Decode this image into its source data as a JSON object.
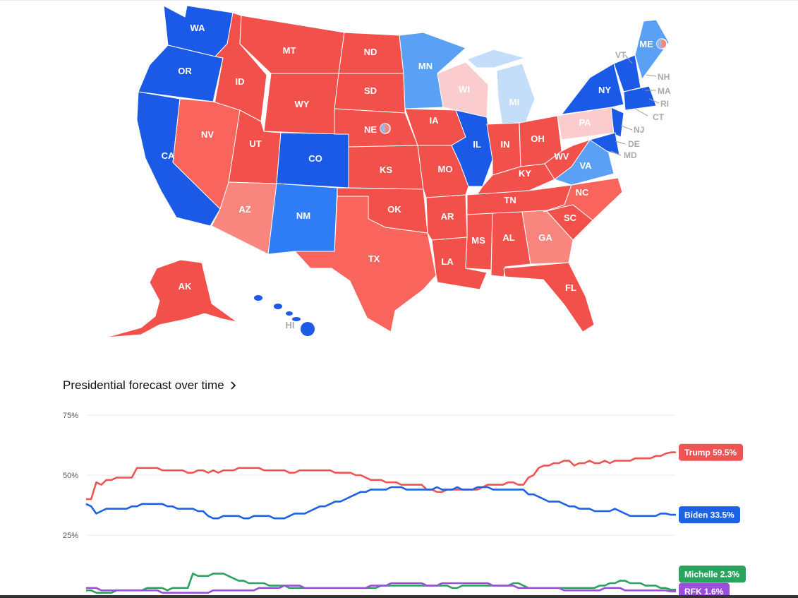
{
  "colors": {
    "safe_dem": "#1a5ae6",
    "likely_dem": "#2e7cf6",
    "lean_dem": "#5aa0f5",
    "tilt_dem": "#c4ddf8",
    "safe_rep": "#f2504b",
    "likely_rep": "#f9655d",
    "lean_rep": "#f9857f",
    "tilt_rep": "#fbcccd",
    "trump": "#ee5453",
    "biden": "#1d62e4",
    "michelle": "#2aa35f",
    "rfk": "#9a4ed9"
  },
  "map": {
    "state_labels": [
      "WA",
      "OR",
      "CA",
      "ID",
      "MT",
      "WY",
      "NV",
      "UT",
      "CO",
      "AZ",
      "NM",
      "ND",
      "SD",
      "NE",
      "KS",
      "OK",
      "TX",
      "MN",
      "IA",
      "MO",
      "AR",
      "LA",
      "WI",
      "IL",
      "MI",
      "IN",
      "OH",
      "KY",
      "TN",
      "MS",
      "AL",
      "GA",
      "FL",
      "SC",
      "NC",
      "VA",
      "WV",
      "PA",
      "NY",
      "ME",
      "AK",
      "HI"
    ],
    "external_labels": [
      "VT",
      "NH",
      "MA",
      "RI",
      "CT",
      "NJ",
      "DE",
      "MD"
    ]
  },
  "forecast": {
    "title": "Presidential forecast over time",
    "chevron_icon": "chevron-right-icon"
  },
  "chart_data": {
    "type": "line",
    "y_ticks": [
      "75%",
      "50%",
      "25%"
    ],
    "ylim": [
      0,
      75
    ],
    "grid": true,
    "legend": "end-of-line tags",
    "series": [
      {
        "name": "Trump",
        "end_label": "Trump 59.5%",
        "values": [
          40,
          40,
          47,
          46,
          48,
          48,
          49,
          49,
          49,
          49,
          53,
          53,
          53,
          53,
          53,
          52,
          52,
          52,
          52,
          52,
          51,
          51,
          52,
          52,
          51,
          52,
          51,
          52,
          52,
          52,
          53,
          53,
          53,
          53,
          53,
          52,
          52,
          52,
          52,
          52,
          51,
          51,
          52,
          52,
          52,
          52,
          52,
          52,
          52,
          51,
          51,
          51,
          51,
          50,
          50,
          49,
          48,
          48,
          48,
          47,
          47,
          47,
          46,
          46,
          46,
          46,
          46,
          44,
          44,
          43,
          43,
          44,
          44,
          44,
          44,
          44,
          44,
          44,
          45,
          46,
          46,
          46,
          46,
          47,
          47,
          46,
          46,
          49,
          50,
          53,
          54,
          54,
          55,
          55,
          56,
          56,
          54,
          55,
          55,
          56,
          55,
          55,
          56,
          55,
          56,
          56,
          56,
          56,
          57,
          57,
          57,
          57,
          58,
          58,
          59,
          59.5,
          59.5
        ]
      },
      {
        "name": "Biden",
        "end_label": "Biden 33.5%",
        "values": [
          38,
          37,
          34,
          35,
          36,
          36,
          36,
          36,
          36,
          37,
          37,
          38,
          38,
          38,
          38,
          38,
          37,
          37,
          36,
          36,
          36,
          36,
          35,
          35,
          33,
          32,
          32,
          33,
          33,
          33,
          33,
          32,
          32,
          33,
          33,
          33,
          33,
          32,
          32,
          32,
          33,
          34,
          34,
          34,
          35,
          36,
          37,
          37,
          38,
          39,
          39,
          40,
          41,
          42,
          43,
          43,
          44,
          44,
          44,
          44,
          45,
          45,
          45,
          44,
          44,
          44,
          44,
          44,
          44,
          45,
          44,
          44,
          44,
          45,
          44,
          44,
          44,
          45,
          45,
          45,
          44,
          44,
          44,
          44,
          44,
          44,
          44,
          42,
          42,
          41,
          40,
          39,
          39,
          39,
          38,
          37,
          37,
          36,
          36,
          36,
          35,
          35,
          35,
          35,
          36,
          35,
          34,
          33,
          33,
          33,
          33,
          33,
          33,
          34,
          34,
          33.5,
          33.5
        ]
      },
      {
        "name": "Michelle",
        "end_label": "Michelle 2.3%",
        "values": [
          2,
          2,
          1,
          1,
          1,
          1,
          2,
          2,
          2,
          2,
          2,
          2,
          3,
          3,
          3,
          3,
          2,
          3,
          3,
          3,
          3,
          9,
          8,
          8,
          8,
          9,
          9,
          9,
          8,
          7,
          6,
          6,
          5,
          5,
          5,
          5,
          4,
          4,
          4,
          4,
          3,
          3,
          3,
          3,
          3,
          3,
          3,
          3,
          3,
          3,
          3,
          3,
          3,
          3,
          3,
          3,
          3,
          3,
          4,
          4,
          4,
          4,
          4,
          4,
          4,
          4,
          4,
          4,
          4,
          4,
          4,
          4,
          3,
          3,
          4,
          4,
          4,
          4,
          4,
          4,
          4,
          4,
          4,
          4,
          5,
          5,
          4,
          3,
          3,
          3,
          3,
          3,
          3,
          3,
          3,
          3,
          3,
          3,
          3,
          3,
          3,
          4,
          4,
          5,
          5,
          6,
          6,
          5,
          5,
          5,
          4,
          4,
          4,
          3,
          3,
          2.3,
          2.3
        ]
      },
      {
        "name": "RFK",
        "end_label": "RFK 1.6%",
        "values": [
          3,
          3,
          3,
          2,
          2,
          2,
          2,
          2,
          2,
          2,
          2,
          2,
          2,
          2,
          2,
          1,
          1,
          1,
          1,
          1,
          1,
          1,
          1,
          1,
          1,
          2,
          2,
          2,
          2,
          2,
          2,
          2,
          2,
          2,
          3,
          3,
          3,
          3,
          3,
          4,
          4,
          4,
          4,
          3,
          3,
          3,
          3,
          3,
          3,
          3,
          3,
          3,
          3,
          3,
          3,
          3,
          4,
          4,
          4,
          4,
          5,
          5,
          5,
          5,
          5,
          5,
          5,
          4,
          4,
          4,
          5,
          5,
          5,
          5,
          5,
          5,
          5,
          5,
          5,
          5,
          4,
          4,
          4,
          4,
          4,
          3,
          3,
          3,
          3,
          3,
          3,
          3,
          3,
          3,
          2,
          2,
          2,
          2,
          2,
          2,
          2,
          2,
          3,
          3,
          3,
          3,
          2,
          2,
          2,
          2,
          2,
          2,
          2,
          2,
          2,
          1.6,
          1.6
        ]
      }
    ]
  }
}
